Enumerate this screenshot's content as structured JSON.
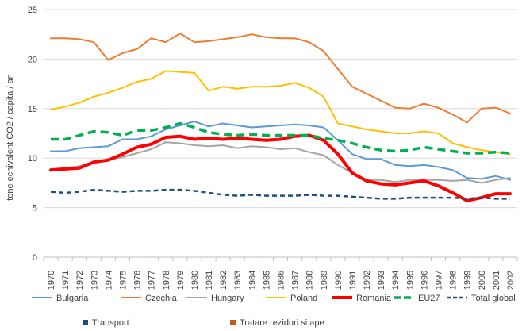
{
  "chart_data": {
    "type": "line",
    "title": "",
    "xlabel": "",
    "ylabel": "tone echivalent CO2 / capita / an",
    "ylim": [
      0,
      25
    ],
    "yticks": [
      0,
      5,
      10,
      15,
      20,
      25
    ],
    "grid": true,
    "legend_position": "bottom",
    "x": [
      "1970",
      "1971",
      "1972",
      "1973",
      "1974",
      "1975",
      "1976",
      "1977",
      "1978",
      "1979",
      "1980",
      "1981",
      "1982",
      "1983",
      "1984",
      "1985",
      "1986",
      "1987",
      "1988",
      "1989",
      "1990",
      "1991",
      "1992",
      "1993",
      "1994",
      "1995",
      "1996",
      "1997",
      "1998",
      "1999",
      "2000",
      "2001",
      "2002"
    ],
    "series": [
      {
        "name": "Bulgaria",
        "color": "#5B9BD5",
        "style": "solid",
        "width": 2,
        "values": [
          10.7,
          10.7,
          11.0,
          11.1,
          11.2,
          11.9,
          11.9,
          12.2,
          12.9,
          13.3,
          13.7,
          13.2,
          13.5,
          13.3,
          13.1,
          13.2,
          13.3,
          13.4,
          13.3,
          13.1,
          11.8,
          10.4,
          9.9,
          9.9,
          9.3,
          9.2,
          9.3,
          9.1,
          8.8,
          8.0,
          7.9,
          8.2,
          7.8
        ]
      },
      {
        "name": "Czechia",
        "color": "#ED7D31",
        "style": "solid",
        "width": 2,
        "values": [
          22.1,
          22.1,
          22.0,
          21.7,
          19.9,
          20.6,
          21.0,
          22.1,
          21.7,
          22.6,
          21.7,
          21.8,
          22.0,
          22.2,
          22.5,
          22.2,
          22.1,
          22.1,
          21.7,
          20.8,
          19.0,
          17.2,
          16.5,
          15.8,
          15.1,
          15.0,
          15.5,
          15.1,
          14.4,
          13.6,
          15.0,
          15.1,
          14.5
        ]
      },
      {
        "name": "Hungary",
        "color": "#A5A5A5",
        "style": "solid",
        "width": 2,
        "values": [
          8.9,
          9.0,
          9.2,
          9.6,
          9.8,
          10.1,
          10.5,
          10.9,
          11.6,
          11.5,
          11.3,
          11.2,
          11.3,
          11.0,
          11.2,
          11.1,
          10.9,
          11.0,
          10.6,
          10.3,
          9.3,
          8.5,
          7.8,
          7.8,
          7.6,
          7.8,
          7.8,
          7.8,
          7.7,
          7.8,
          7.5,
          7.8,
          8.0
        ]
      },
      {
        "name": "Poland",
        "color": "#FFC000",
        "style": "solid",
        "width": 2,
        "values": [
          14.9,
          15.2,
          15.6,
          16.2,
          16.6,
          17.1,
          17.7,
          18.0,
          18.8,
          18.7,
          18.6,
          16.8,
          17.2,
          17.0,
          17.2,
          17.2,
          17.3,
          17.6,
          17.1,
          16.2,
          13.5,
          13.2,
          12.9,
          12.7,
          12.5,
          12.5,
          12.7,
          12.5,
          11.5,
          11.1,
          10.8,
          10.6,
          10.4
        ]
      },
      {
        "name": "Romania",
        "color": "#FF0000",
        "style": "solid",
        "width": 4,
        "values": [
          8.8,
          8.9,
          9.0,
          9.6,
          9.8,
          10.4,
          11.1,
          11.4,
          12.1,
          12.2,
          11.9,
          12.0,
          11.9,
          12.0,
          11.9,
          11.8,
          11.9,
          12.2,
          12.3,
          11.8,
          10.4,
          8.5,
          7.7,
          7.4,
          7.3,
          7.5,
          7.7,
          7.2,
          6.5,
          5.7,
          6.0,
          6.4,
          6.4
        ]
      },
      {
        "name": "EU27",
        "color": "#00B050",
        "style": "dash",
        "width": 3.5,
        "values": [
          11.9,
          11.9,
          12.3,
          12.7,
          12.6,
          12.3,
          12.8,
          12.8,
          13.1,
          13.5,
          13.1,
          12.6,
          12.4,
          12.3,
          12.4,
          12.3,
          12.3,
          12.3,
          12.3,
          12.0,
          11.8,
          11.5,
          11.1,
          10.8,
          10.7,
          10.8,
          11.1,
          10.9,
          10.7,
          10.5,
          10.5,
          10.6,
          10.5
        ]
      },
      {
        "name": "Total global",
        "color": "#1F4E79",
        "style": "dash",
        "width": 2.5,
        "values": [
          6.6,
          6.5,
          6.6,
          6.8,
          6.7,
          6.6,
          6.7,
          6.7,
          6.8,
          6.8,
          6.7,
          6.5,
          6.3,
          6.2,
          6.3,
          6.2,
          6.2,
          6.2,
          6.3,
          6.2,
          6.2,
          6.1,
          6.0,
          5.9,
          5.9,
          6.0,
          6.0,
          6.0,
          6.0,
          5.9,
          6.0,
          5.9,
          5.9
        ]
      }
    ],
    "extra_legend": [
      {
        "name": "Transport",
        "color": "#1F4E79"
      },
      {
        "name": "Tratare reziduri si ape",
        "color": "#C55A11"
      }
    ]
  }
}
